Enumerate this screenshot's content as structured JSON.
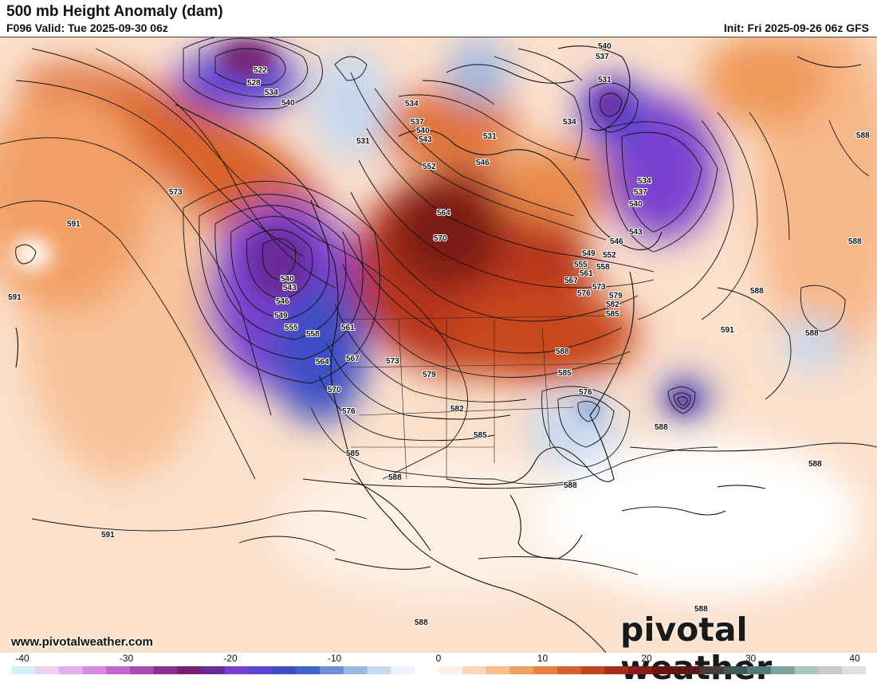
{
  "header": {
    "title": "500 mb Height Anomaly (dam)",
    "valid": "F096 Valid: Tue 2025-09-30 06z",
    "init": "Init: Fri 2025-09-26 06z GFS"
  },
  "footer": {
    "url": "www.pivotalweather.com",
    "brand": "pivotal weather"
  },
  "colorbar": {
    "min": -40,
    "max": 40,
    "ticks": [
      "-40",
      "-30",
      "-20",
      "-10",
      "0",
      "10",
      "20",
      "30",
      "40"
    ],
    "colors": [
      "#d6f0fb",
      "#e8d4f0",
      "#e2b0ea",
      "#d889e2",
      "#c766cf",
      "#a94aae",
      "#8c2f8e",
      "#76206e",
      "#6b2a9a",
      "#7a3fd0",
      "#5a45d6",
      "#3d4ec4",
      "#3f63c8",
      "#6d8fd6",
      "#9db7e3",
      "#c7d8ef",
      "#eef3fb",
      "#ffffff",
      "#fdf0e4",
      "#fbd9b8",
      "#f8c08e",
      "#f2a062",
      "#e9803c",
      "#d9602a",
      "#c24420",
      "#a42e18",
      "#8a1c1a",
      "#6f1015",
      "#5b1a1a",
      "#4b3a3a",
      "#3c5a58",
      "#4f7e78",
      "#7ca39d",
      "#a9c6bf",
      "#c9c9c9",
      "#e0e0e0"
    ]
  },
  "contour_labels": [
    "522",
    "528",
    "534",
    "540",
    "534",
    "537",
    "540",
    "543",
    "531",
    "546",
    "531",
    "552",
    "540",
    "537",
    "531",
    "534",
    "534",
    "537",
    "540",
    "543",
    "546",
    "549",
    "552",
    "555",
    "558",
    "561",
    "567",
    "573",
    "576",
    "579",
    "582",
    "585",
    "588",
    "573",
    "591",
    "591",
    "561",
    "564",
    "567",
    "570",
    "573",
    "576",
    "579",
    "582",
    "585",
    "588",
    "588",
    "585",
    "588",
    "588",
    "591",
    "591",
    "588",
    "588",
    "588",
    "588",
    "540",
    "543",
    "546",
    "549",
    "555",
    "558",
    "564",
    "570",
    "576",
    "585",
    "588",
    "588"
  ],
  "map": {
    "positive_anomaly_color": "#c84a1c",
    "negative_anomaly_color": "#5b3fc8",
    "neutral_color": "#ffffff"
  }
}
